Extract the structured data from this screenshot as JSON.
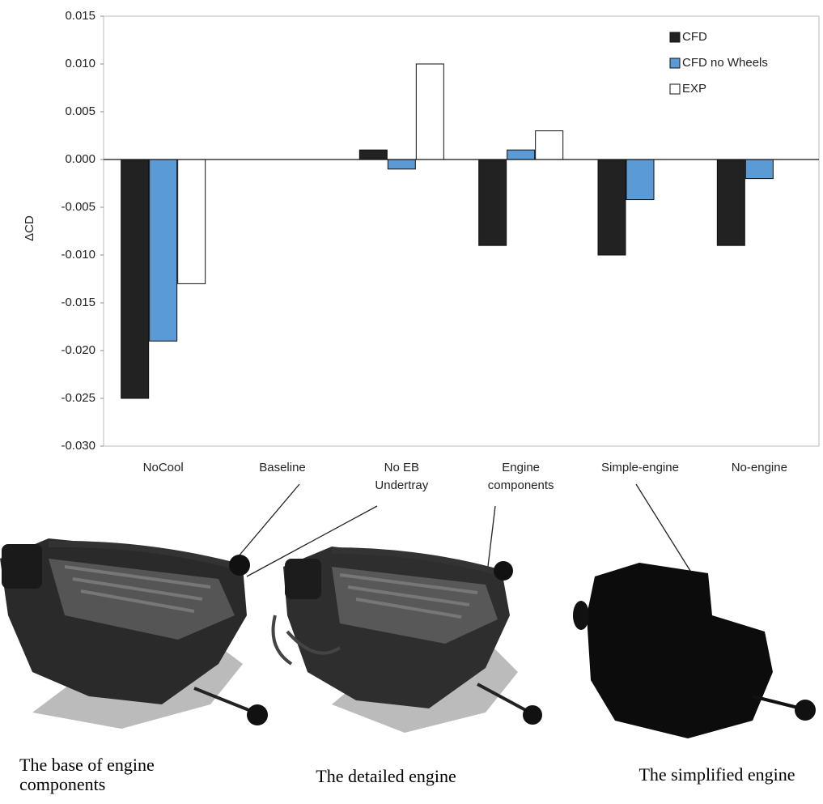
{
  "chart_data": {
    "type": "bar",
    "y_label": "ΔCD",
    "categories": [
      "NoCool",
      "Baseline",
      "No EB Undertray",
      "Engine components",
      "Simple-engine",
      "No-engine"
    ],
    "series": [
      {
        "name": "CFD",
        "color": "#222222",
        "values": [
          -0.025,
          0,
          0.001,
          -0.009,
          -0.01,
          -0.009
        ]
      },
      {
        "name": "CFD no Wheels",
        "color": "#5b9bd5",
        "values": [
          -0.019,
          0,
          -0.001,
          0.001,
          -0.0042,
          -0.002
        ]
      },
      {
        "name": "EXP",
        "color": "#ffffff",
        "values": [
          -0.013,
          0,
          0.01,
          0.003,
          null,
          null
        ]
      }
    ],
    "ylim": [
      -0.03,
      0.015
    ],
    "yticks": [
      {
        "value": -0.03,
        "label": "-0.030"
      },
      {
        "value": -0.025,
        "label": "-0.025"
      },
      {
        "value": -0.02,
        "label": "-0.020"
      },
      {
        "value": -0.015,
        "label": "-0.015"
      },
      {
        "value": -0.01,
        "label": "-0.010"
      },
      {
        "value": -0.005,
        "label": "-0.005"
      },
      {
        "value": 0,
        "label": "0.000"
      },
      {
        "value": 0.005,
        "label": "0.005"
      },
      {
        "value": 0.01,
        "label": "0.010"
      },
      {
        "value": 0.015,
        "label": "0.015"
      }
    ],
    "legend": "upper right"
  },
  "images": [
    {
      "caption": "The base of engine components"
    },
    {
      "caption": "The detailed engine"
    },
    {
      "caption": "The simplified engine"
    }
  ]
}
